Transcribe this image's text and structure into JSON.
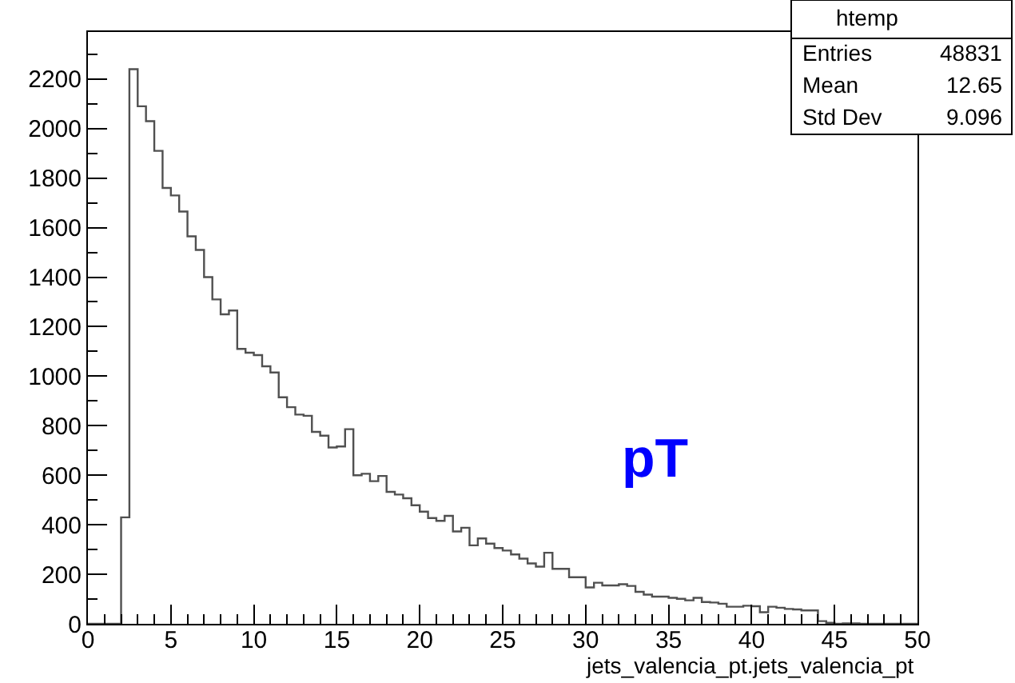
{
  "chart_data": {
    "type": "histogram",
    "xlabel": "jets_valencia_pt.jets_valencia_pt",
    "bins": [
      0,
      0.5,
      1,
      1.5,
      2,
      2.5,
      3,
      3.5,
      4,
      4.5,
      5,
      5.5,
      6,
      6.5,
      7,
      7.5,
      8,
      8.5,
      9,
      9.5,
      10,
      10.5,
      11,
      11.5,
      12,
      12.5,
      13,
      13.5,
      14,
      14.5,
      15,
      15.5,
      16,
      16.5,
      17,
      17.5,
      18,
      18.5,
      19,
      19.5,
      20,
      20.5,
      21,
      21.5,
      22,
      22.5,
      23,
      23.5,
      24,
      24.5,
      25,
      25.5,
      26,
      26.5,
      27,
      27.5,
      28,
      28.5,
      29,
      29.5,
      30,
      30.5,
      31,
      31.5,
      32,
      32.5,
      33,
      33.5,
      34,
      34.5,
      35,
      35.5,
      36,
      36.5,
      37,
      37.5,
      38,
      38.5,
      39,
      39.5,
      40,
      40.5,
      41,
      41.5,
      42,
      42.5,
      43,
      43.5,
      44,
      44.5,
      45,
      45.5,
      46,
      46.5,
      47,
      47.5,
      48,
      48.5,
      49,
      49.5,
      50
    ],
    "values": [
      0,
      0,
      0,
      0,
      430,
      2240,
      2090,
      2030,
      1910,
      1760,
      1730,
      1665,
      1565,
      1510,
      1400,
      1310,
      1250,
      1265,
      1110,
      1095,
      1085,
      1040,
      1015,
      915,
      875,
      845,
      840,
      775,
      760,
      712,
      716,
      786,
      600,
      606,
      576,
      597,
      533,
      522,
      507,
      479,
      453,
      427,
      416,
      436,
      373,
      388,
      317,
      345,
      324,
      306,
      296,
      280,
      263,
      244,
      231,
      287,
      222,
      222,
      188,
      188,
      147,
      166,
      155,
      155,
      160,
      153,
      129,
      118,
      110,
      110,
      105,
      101,
      95,
      105,
      88,
      86,
      81,
      69,
      69,
      73,
      71,
      47,
      69,
      65,
      60,
      58,
      54,
      54,
      11,
      4,
      0,
      2,
      2,
      0,
      0,
      0,
      0,
      0,
      0,
      0
    ],
    "color": "#505050",
    "xlim": [
      0,
      50
    ],
    "xticks": [
      0,
      5,
      10,
      15,
      20,
      25,
      30,
      35,
      40,
      45,
      50
    ],
    "ylim": [
      0,
      2390
    ],
    "yticks": [
      0,
      200,
      400,
      600,
      800,
      1000,
      1200,
      1400,
      1600,
      1800,
      2000,
      2200
    ],
    "annotations": [
      "htemp",
      "Entries",
      "48831",
      "Mean",
      "12.65",
      "Std Dev",
      "9.096",
      "pT"
    ]
  }
}
